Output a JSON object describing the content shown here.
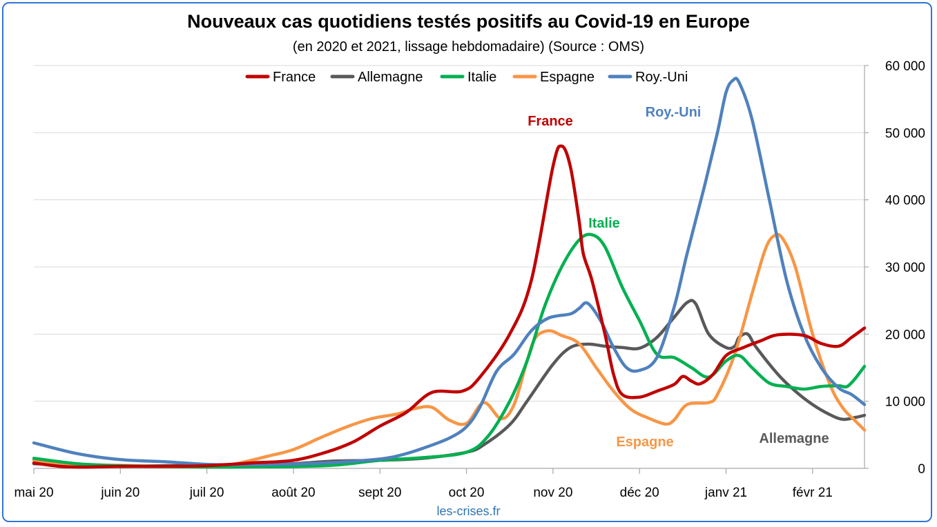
{
  "chart_data": {
    "type": "line",
    "title": "Nouveaux cas quotidiens testés positifs au Covid-19 en Europe",
    "subtitle": "(en 2020 et 2021, lissage hebdomadaire) (Source : OMS)",
    "source_note": "les-crises.fr",
    "x_tick_labels": [
      "mai 20",
      "juin 20",
      "juil 20",
      "août 20",
      "sept 20",
      "oct 20",
      "nov 20",
      "déc 20",
      "janv 21",
      "févr 21"
    ],
    "x_unit": "months since mai 20",
    "xlim": [
      0,
      9.6
    ],
    "ylim": [
      0,
      60000
    ],
    "y_ticks": [
      0,
      10000,
      20000,
      30000,
      40000,
      50000,
      60000
    ],
    "y_tick_labels": [
      "0",
      "10 000",
      "20 000",
      "30 000",
      "40 000",
      "50 000",
      "60 000"
    ],
    "y_axis_position": "right",
    "grid": true,
    "legend_position": "top",
    "series": [
      {
        "name": "France",
        "color": "#c00000",
        "inline_label": "France",
        "points": [
          [
            0,
            800
          ],
          [
            0.3,
            300
          ],
          [
            0.6,
            200
          ],
          [
            1,
            300
          ],
          [
            1.5,
            300
          ],
          [
            2,
            400
          ],
          [
            2.5,
            800
          ],
          [
            3,
            1200
          ],
          [
            3.4,
            2500
          ],
          [
            3.7,
            4000
          ],
          [
            4,
            6300
          ],
          [
            4.3,
            8300
          ],
          [
            4.6,
            11300
          ],
          [
            4.95,
            11500
          ],
          [
            5.15,
            13500
          ],
          [
            5.5,
            20000
          ],
          [
            5.75,
            28000
          ],
          [
            6,
            45000
          ],
          [
            6.1,
            48000
          ],
          [
            6.2,
            45000
          ],
          [
            6.3,
            37000
          ],
          [
            6.35,
            32000
          ],
          [
            6.45,
            28000
          ],
          [
            6.6,
            20000
          ],
          [
            6.7,
            14000
          ],
          [
            6.8,
            11000
          ],
          [
            7,
            10600
          ],
          [
            7.2,
            11500
          ],
          [
            7.4,
            12500
          ],
          [
            7.5,
            13700
          ],
          [
            7.6,
            13000
          ],
          [
            7.7,
            12600
          ],
          [
            7.85,
            14000
          ],
          [
            8,
            16800
          ],
          [
            8.2,
            18000
          ],
          [
            8.4,
            19000
          ],
          [
            8.6,
            19900
          ],
          [
            8.9,
            19800
          ],
          [
            9.1,
            18600
          ],
          [
            9.3,
            18200
          ],
          [
            9.45,
            19500
          ],
          [
            9.6,
            20900
          ]
        ]
      },
      {
        "name": "Allemagne",
        "color": "#595959",
        "inline_label": "Allemagne",
        "points": [
          [
            0,
            700
          ],
          [
            0.5,
            450
          ],
          [
            1,
            300
          ],
          [
            1.5,
            400
          ],
          [
            2,
            450
          ],
          [
            2.5,
            500
          ],
          [
            3,
            700
          ],
          [
            3.5,
            1100
          ],
          [
            4,
            1200
          ],
          [
            4.5,
            1500
          ],
          [
            5,
            2400
          ],
          [
            5.2,
            3500
          ],
          [
            5.5,
            6500
          ],
          [
            5.7,
            10000
          ],
          [
            6,
            15500
          ],
          [
            6.2,
            18000
          ],
          [
            6.4,
            18500
          ],
          [
            6.6,
            18200
          ],
          [
            6.8,
            18000
          ],
          [
            7,
            17900
          ],
          [
            7.2,
            19500
          ],
          [
            7.4,
            22500
          ],
          [
            7.55,
            24700
          ],
          [
            7.65,
            24500
          ],
          [
            7.8,
            20000
          ],
          [
            8,
            18000
          ],
          [
            8.1,
            18200
          ],
          [
            8.15,
            19500
          ],
          [
            8.25,
            20000
          ],
          [
            8.35,
            18000
          ],
          [
            8.6,
            14000
          ],
          [
            8.8,
            11500
          ],
          [
            9,
            9500
          ],
          [
            9.2,
            8000
          ],
          [
            9.35,
            7300
          ],
          [
            9.5,
            7600
          ],
          [
            9.6,
            7900
          ]
        ]
      },
      {
        "name": "Italie",
        "color": "#00b050",
        "inline_label": "Italie",
        "points": [
          [
            0,
            1500
          ],
          [
            0.5,
            700
          ],
          [
            1,
            400
          ],
          [
            1.5,
            300
          ],
          [
            2,
            200
          ],
          [
            2.5,
            230
          ],
          [
            3,
            280
          ],
          [
            3.5,
            500
          ],
          [
            4,
            1200
          ],
          [
            4.5,
            1600
          ],
          [
            5,
            2400
          ],
          [
            5.25,
            4800
          ],
          [
            5.5,
            10000
          ],
          [
            5.7,
            16000
          ],
          [
            5.9,
            24000
          ],
          [
            6.1,
            30000
          ],
          [
            6.3,
            34000
          ],
          [
            6.45,
            34800
          ],
          [
            6.6,
            33000
          ],
          [
            6.8,
            27000
          ],
          [
            7,
            22000
          ],
          [
            7.2,
            17000
          ],
          [
            7.4,
            16500
          ],
          [
            7.6,
            15000
          ],
          [
            7.8,
            13600
          ],
          [
            8,
            16000
          ],
          [
            8.15,
            16800
          ],
          [
            8.3,
            15000
          ],
          [
            8.5,
            12700
          ],
          [
            8.7,
            12200
          ],
          [
            8.9,
            11800
          ],
          [
            9.1,
            12200
          ],
          [
            9.3,
            12300
          ],
          [
            9.4,
            12200
          ],
          [
            9.5,
            13500
          ],
          [
            9.6,
            15200
          ]
        ]
      },
      {
        "name": "Espagne",
        "color": "#f79646",
        "inline_label": "Espagne",
        "points": [
          [
            0,
            1200
          ],
          [
            0.5,
            550
          ],
          [
            1,
            450
          ],
          [
            1.5,
            300
          ],
          [
            2,
            200
          ],
          [
            2.3,
            600
          ],
          [
            2.7,
            1800
          ],
          [
            3,
            2800
          ],
          [
            3.3,
            4500
          ],
          [
            3.6,
            6100
          ],
          [
            3.9,
            7400
          ],
          [
            4.2,
            8100
          ],
          [
            4.4,
            8900
          ],
          [
            4.6,
            9100
          ],
          [
            4.8,
            7200
          ],
          [
            5,
            6700
          ],
          [
            5.2,
            9800
          ],
          [
            5.4,
            7400
          ],
          [
            5.55,
            9500
          ],
          [
            5.7,
            16000
          ],
          [
            5.8,
            19500
          ],
          [
            5.95,
            20500
          ],
          [
            6.1,
            19800
          ],
          [
            6.3,
            18600
          ],
          [
            6.5,
            15000
          ],
          [
            6.7,
            11500
          ],
          [
            6.9,
            8800
          ],
          [
            7.1,
            7500
          ],
          [
            7.3,
            6600
          ],
          [
            7.4,
            7200
          ],
          [
            7.55,
            9500
          ],
          [
            7.8,
            9800
          ],
          [
            7.9,
            11000
          ],
          [
            8.1,
            17000
          ],
          [
            8.3,
            26000
          ],
          [
            8.45,
            32500
          ],
          [
            8.55,
            34600
          ],
          [
            8.65,
            34300
          ],
          [
            8.8,
            30000
          ],
          [
            9,
            20000
          ],
          [
            9.2,
            12500
          ],
          [
            9.35,
            9000
          ],
          [
            9.5,
            7000
          ],
          [
            9.6,
            5700
          ]
        ]
      },
      {
        "name": "Roy.-Uni",
        "color": "#4f81bd",
        "inline_label": "Roy.-Uni",
        "points": [
          [
            0,
            3800
          ],
          [
            0.5,
            2200
          ],
          [
            1,
            1300
          ],
          [
            1.5,
            1000
          ],
          [
            2,
            600
          ],
          [
            2.5,
            550
          ],
          [
            3,
            650
          ],
          [
            3.5,
            900
          ],
          [
            4,
            1400
          ],
          [
            4.25,
            2000
          ],
          [
            4.5,
            3000
          ],
          [
            4.8,
            4500
          ],
          [
            5,
            6200
          ],
          [
            5.15,
            9000
          ],
          [
            5.35,
            14500
          ],
          [
            5.55,
            17000
          ],
          [
            5.75,
            20500
          ],
          [
            5.95,
            22400
          ],
          [
            6.2,
            23000
          ],
          [
            6.3,
            23800
          ],
          [
            6.4,
            24600
          ],
          [
            6.55,
            22000
          ],
          [
            6.7,
            18000
          ],
          [
            6.85,
            15000
          ],
          [
            7,
            14600
          ],
          [
            7.2,
            16500
          ],
          [
            7.4,
            24000
          ],
          [
            7.55,
            32000
          ],
          [
            7.75,
            42000
          ],
          [
            7.9,
            50000
          ],
          [
            8,
            56000
          ],
          [
            8.08,
            57800
          ],
          [
            8.15,
            57500
          ],
          [
            8.3,
            52000
          ],
          [
            8.5,
            40000
          ],
          [
            8.7,
            28000
          ],
          [
            8.9,
            20000
          ],
          [
            9.1,
            15000
          ],
          [
            9.3,
            12000
          ],
          [
            9.45,
            11000
          ],
          [
            9.6,
            9500
          ]
        ]
      }
    ],
    "legend": [
      "France",
      "Allemagne",
      "Italie",
      "Espagne",
      "Roy.-Uni"
    ]
  }
}
